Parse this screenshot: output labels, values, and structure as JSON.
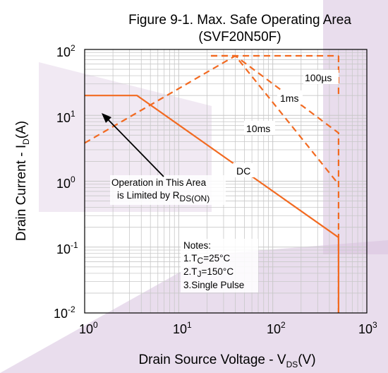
{
  "chart_data": {
    "type": "line",
    "title_line1": "Figure 9-1. Max. Safe Operating Area",
    "title_line2": "(SVF20N50F)",
    "ylabel_main": "Drain Current - I",
    "ylabel_sub": "D",
    "ylabel_tail": "(A)",
    "xlabel_main": "Drain Source Voltage - V",
    "xlabel_sub": "DS",
    "xlabel_tail": "(V)",
    "x_scale": "log",
    "y_scale": "log",
    "xlim": [
      1,
      1000
    ],
    "ylim": [
      0.01,
      100
    ],
    "grid": true,
    "x_ticks": [
      {
        "base": "10",
        "exp": "0"
      },
      {
        "base": "10",
        "exp": "1"
      },
      {
        "base": "10",
        "exp": "2"
      },
      {
        "base": "10",
        "exp": "3"
      }
    ],
    "y_ticks": [
      {
        "base": "10",
        "exp": "2"
      },
      {
        "base": "10",
        "exp": "1"
      },
      {
        "base": "10",
        "exp": "0"
      },
      {
        "base": "10",
        "exp": "-1"
      },
      {
        "base": "10",
        "exp": "-2"
      }
    ],
    "series": [
      {
        "name": "100µs",
        "style": "dashed",
        "x": [
          500,
          500,
          500
        ],
        "y": [
          80,
          80,
          20
        ]
      },
      {
        "name": "1ms",
        "style": "dashed",
        "x": [
          22,
          40,
          500,
          500
        ],
        "y": [
          80,
          80,
          5.4,
          0.01
        ]
      },
      {
        "name": "10ms",
        "style": "dashed",
        "x": [
          1,
          40,
          500
        ],
        "y": [
          3.8,
          80,
          0.9
        ]
      },
      {
        "name": "DC",
        "style": "solid",
        "x": [
          1,
          3.6,
          500,
          500
        ],
        "y": [
          20,
          20,
          0.14,
          0.01
        ]
      }
    ],
    "top_line": {
      "style": "dashed",
      "x": [
        22,
        500
      ],
      "y": [
        80,
        80
      ]
    },
    "curve_labels": [
      "100µs",
      "1ms",
      "10ms",
      "DC"
    ],
    "annotation": {
      "line1": "Operation in This Area",
      "line2_main": "is Limited by R",
      "line2_sub": "DS(ON)"
    },
    "notes": {
      "title": "Notes:",
      "n1_main": "1.T",
      "n1_sub": "C",
      "n1_tail": "=25°C",
      "n2_main": "2.T",
      "n2_sub": "J",
      "n2_tail": "=150°C",
      "n3": "3.Single Pulse"
    },
    "colors": {
      "curve": "#f26a21",
      "grid": "#c8c8c8",
      "frame": "#000000"
    }
  }
}
